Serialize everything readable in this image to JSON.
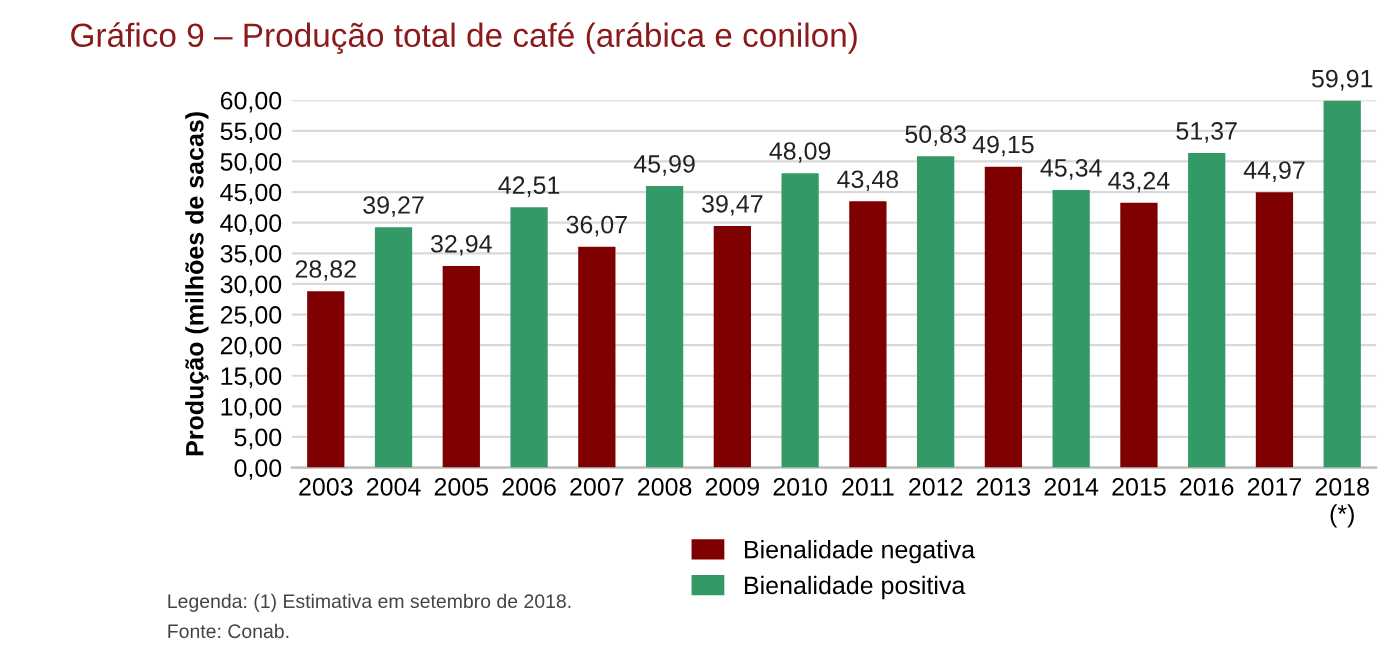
{
  "chart_data": {
    "type": "bar",
    "title": "Gráfico 9 – Produção total de café (arábica e conilon)",
    "ylabel": "Produção (milhões de sacas)",
    "categories": [
      "2003",
      "2004",
      "2005",
      "2006",
      "2007",
      "2008",
      "2009",
      "2010",
      "2011",
      "2012",
      "2013",
      "2014",
      "2015",
      "2016",
      "2017",
      "2018\n(*)"
    ],
    "series": [
      {
        "name": "Bienalidade negativa",
        "color": "#7f0000",
        "values": [
          28.82,
          null,
          32.94,
          null,
          36.07,
          null,
          39.47,
          null,
          43.48,
          null,
          49.15,
          null,
          43.24,
          null,
          44.97,
          null
        ],
        "value_labels": [
          "28,82",
          null,
          "32,94",
          null,
          "36,07",
          null,
          "39,47",
          null,
          "43,48",
          null,
          "49,15",
          null,
          "43,24",
          null,
          "44,97",
          null
        ]
      },
      {
        "name": "Bienalidade positiva",
        "color": "#339966",
        "values": [
          null,
          39.27,
          null,
          42.51,
          null,
          45.99,
          null,
          48.09,
          null,
          50.83,
          null,
          45.34,
          null,
          51.37,
          null,
          59.91
        ],
        "value_labels": [
          null,
          "39,27",
          null,
          "42,51",
          null,
          "45,99",
          null,
          "48,09",
          null,
          "50,83",
          null,
          "45,34",
          null,
          "51,37",
          null,
          "59,91"
        ]
      }
    ],
    "ylim": [
      0,
      60
    ],
    "yticks": [
      {
        "value": 0,
        "label": "0,00"
      },
      {
        "value": 5,
        "label": "5,00"
      },
      {
        "value": 10,
        "label": "10,00"
      },
      {
        "value": 15,
        "label": "15,00"
      },
      {
        "value": 20,
        "label": "20,00"
      },
      {
        "value": 25,
        "label": "25,00"
      },
      {
        "value": 30,
        "label": "30,00"
      },
      {
        "value": 35,
        "label": "35,00"
      },
      {
        "value": 40,
        "label": "40,00"
      },
      {
        "value": 45,
        "label": "45,00"
      },
      {
        "value": 50,
        "label": "50,00"
      },
      {
        "value": 55,
        "label": "55,00"
      },
      {
        "value": 60,
        "label": "60,00"
      }
    ],
    "grid": "y",
    "legend": "bottom",
    "annotations": [
      "Legenda: (1) Estimativa em setembro de 2018.",
      "Fonte: Conab."
    ]
  }
}
